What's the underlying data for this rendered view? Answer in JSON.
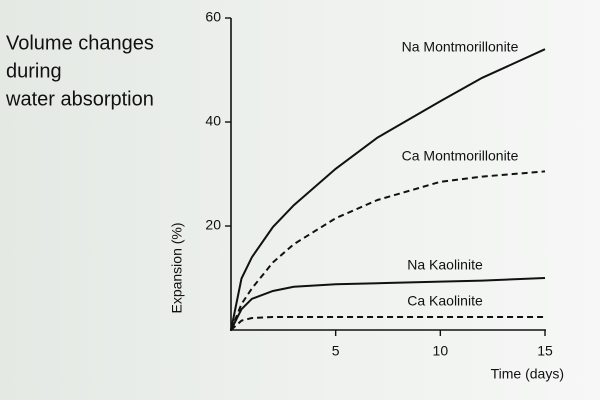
{
  "chart_data": {
    "type": "line",
    "title": [
      "Volume changes",
      "during",
      "water absorption"
    ],
    "x_label": "Time (days)",
    "y_label": "Expansion (%)",
    "x": [
      0,
      0.5,
      1,
      2,
      3,
      5,
      7,
      10,
      12,
      15
    ],
    "series": [
      {
        "name": "Na Montmorillonite",
        "color": "#111111",
        "dash": false,
        "values": [
          0,
          9.9,
          14,
          19.8,
          24,
          31,
          37,
          44,
          48.5,
          54
        ]
      },
      {
        "name": "Ca Montmorillonite",
        "color": "#111111",
        "dash": true,
        "values": [
          0,
          5,
          8,
          13,
          16.5,
          21.5,
          25,
          28.5,
          29.5,
          30.5
        ]
      },
      {
        "name": "Na Kaolinite",
        "color": "#111111",
        "dash": false,
        "values": [
          0,
          4,
          6,
          7.5,
          8.3,
          8.8,
          9,
          9.3,
          9.5,
          10
        ]
      },
      {
        "name": "Ca Kaolinite",
        "color": "#111111",
        "dash": true,
        "values": [
          0,
          1.8,
          2.3,
          2.5,
          2.5,
          2.5,
          2.5,
          2.5,
          2.5,
          2.5
        ]
      }
    ],
    "xlim": [
      0,
      15
    ],
    "xticks": [
      5,
      10,
      15
    ],
    "ylim": [
      0,
      60
    ],
    "yticks": [
      20,
      40,
      60
    ],
    "grid": false
  }
}
